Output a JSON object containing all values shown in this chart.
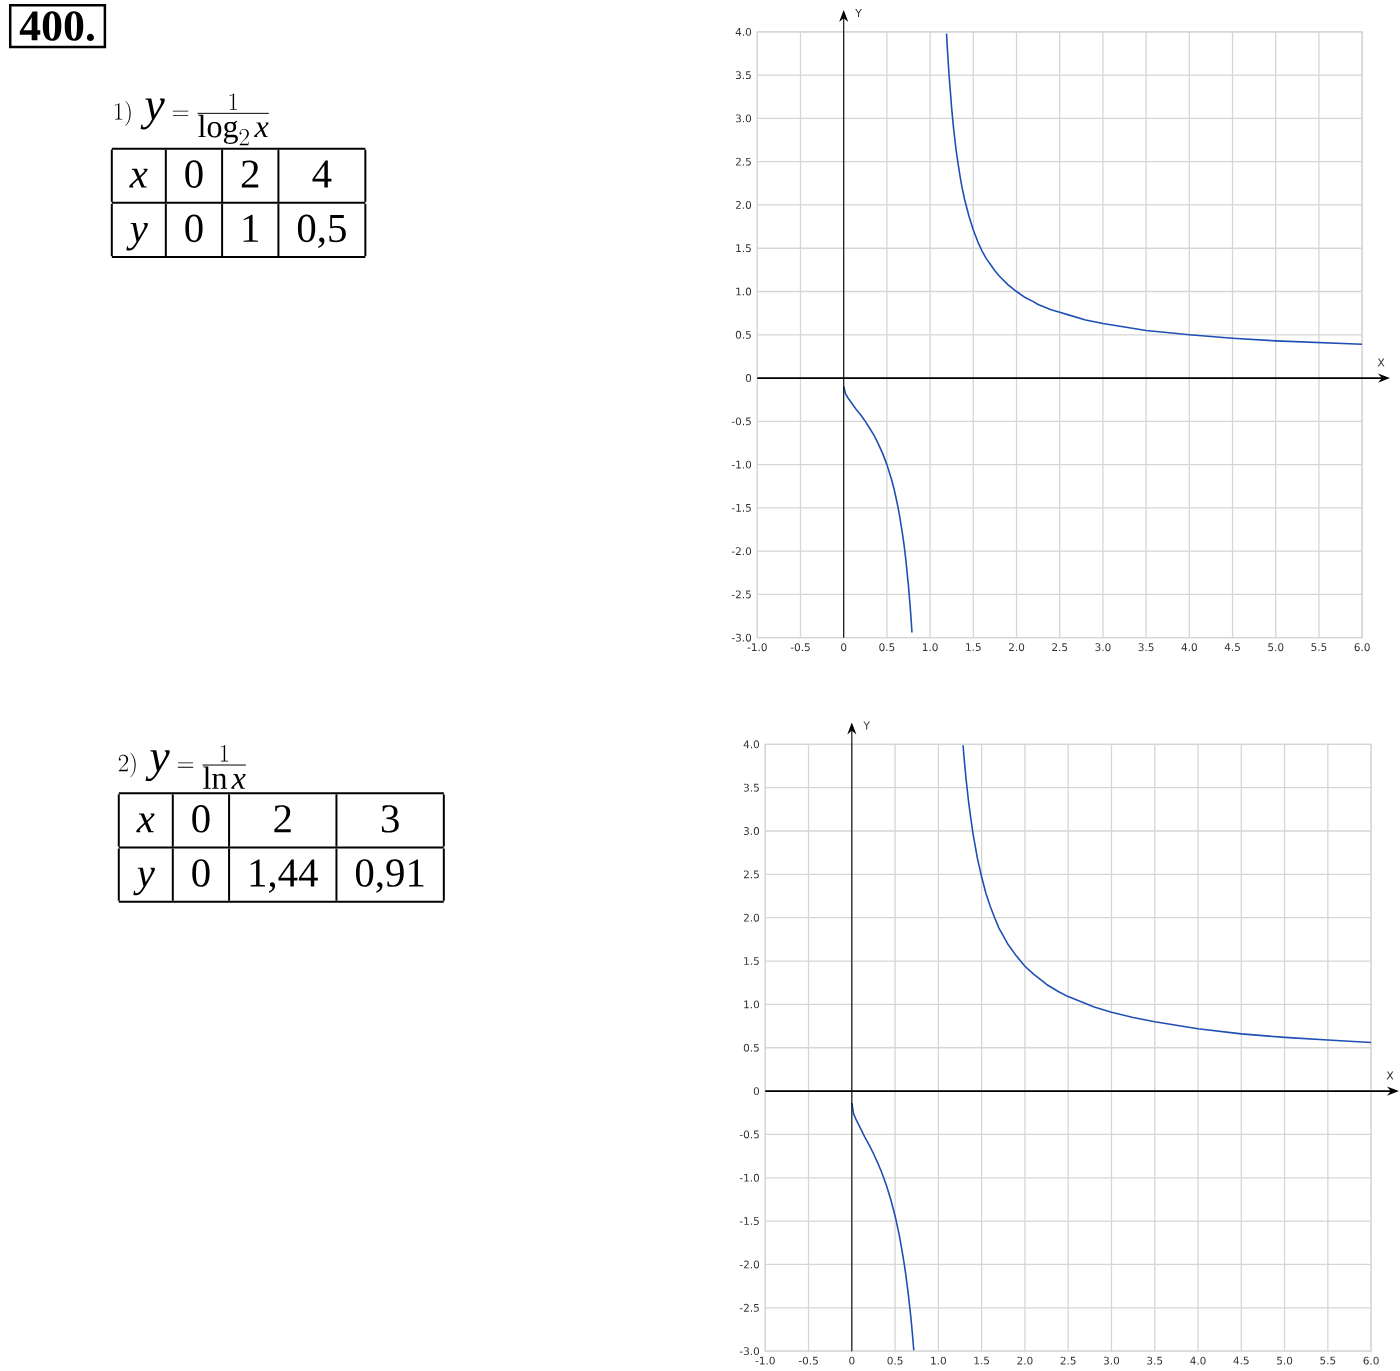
{
  "chart_data": [
    {
      "type": "other",
      "title": "400.",
      "subtitle": "1)\\ y=\\frac{1}{\\log_{2}x}",
      "annotations": [
        "x",
        "0",
        "2",
        "4",
        "y",
        "0",
        "1",
        "0,5"
      ]
    },
    {
      "type": "line",
      "xlabel": "X",
      "ylabel": "Y",
      "xlim": [
        -1,
        6
      ],
      "ylim": [
        -3,
        4
      ],
      "xticks": [
        {
          "value": -1,
          "label": "-1.0"
        },
        -0.5,
        0,
        0.5,
        {
          "value": 1,
          "label": "1.0"
        },
        1.5,
        {
          "value": 2,
          "label": "2.0"
        },
        2.5,
        {
          "value": 3,
          "label": "3.0"
        },
        3.5,
        {
          "value": 4,
          "label": "4.0"
        },
        4.5,
        {
          "value": 5,
          "label": "5.0"
        },
        5.5,
        {
          "value": 6,
          "label": "6.0"
        }
      ],
      "yticks": [
        {
          "value": -3,
          "label": "-3.0"
        },
        -2.5,
        {
          "value": -2,
          "label": "-2.0"
        },
        -1.5,
        {
          "value": -1,
          "label": "-1.0"
        },
        -0.5,
        0,
        0.5,
        {
          "value": 1,
          "label": "1.0"
        },
        1.5,
        {
          "value": 2,
          "label": "2.0"
        },
        2.5,
        {
          "value": 3,
          "label": "3.0"
        },
        3.5,
        {
          "value": 4,
          "label": "4.0"
        }
      ],
      "grid": true,
      "series": [
        {
          "color": "#1f4fb5",
          "x": [
            0.001,
            0.02,
            0.05,
            0.1,
            0.15,
            0.2,
            0.25,
            0.3,
            0.35,
            0.4,
            0.45,
            0.5,
            0.55,
            0.58,
            0.6,
            0.62,
            0.65,
            0.68,
            0.7,
            0.72,
            0.75,
            0.76,
            0.77,
            0.78,
            0.79,
            1,
            1.19,
            1.2,
            1.22,
            1.25,
            1.27,
            1.3,
            1.32,
            1.35,
            1.37,
            1.4,
            1.45,
            1.5,
            1.55,
            1.6,
            1.65,
            1.7,
            1.75,
            1.8,
            1.9,
            2,
            2.1,
            2.2,
            2.25,
            2.4,
            2.5,
            2.6,
            2.8,
            3,
            3.25,
            3.5,
            4,
            4.5,
            5,
            5.5,
            6
          ],
          "values": [
            -0.1,
            -0.18,
            -0.23,
            -0.3,
            -0.37,
            -0.43,
            -0.5,
            -0.58,
            -0.66,
            -0.76,
            -0.87,
            -1.0,
            -1.16,
            -1.27,
            -1.36,
            -1.45,
            -1.61,
            -1.8,
            -1.94,
            -2.11,
            -2.41,
            -2.53,
            -2.65,
            -2.79,
            -2.94,
            null,
            3.98,
            3.8,
            3.49,
            3.11,
            2.9,
            2.64,
            2.5,
            2.31,
            2.2,
            2.06,
            1.87,
            1.71,
            1.58,
            1.47,
            1.38,
            1.31,
            1.24,
            1.18,
            1.08,
            1.0,
            0.93,
            0.88,
            0.85,
            0.79,
            0.76,
            0.73,
            0.67,
            0.63,
            0.59,
            0.55,
            0.5,
            0.46,
            0.43,
            0.41,
            0.39
          ]
        }
      ]
    },
    {
      "type": "other",
      "subtitle": "2)\\ y=\\frac{1}{\\ln x}",
      "annotations": [
        "x",
        "0",
        "2",
        "3",
        "y",
        "0",
        "1,44",
        "0,91"
      ]
    },
    {
      "type": "line",
      "xlabel": "X",
      "ylabel": "Y",
      "xlim": [
        -1,
        6
      ],
      "ylim": [
        -3,
        4
      ],
      "xticks": [
        {
          "value": -1,
          "label": "-1.0"
        },
        -0.5,
        0,
        0.5,
        {
          "value": 1,
          "label": "1.0"
        },
        1.5,
        {
          "value": 2,
          "label": "2.0"
        },
        2.5,
        {
          "value": 3,
          "label": "3.0"
        },
        3.5,
        {
          "value": 4,
          "label": "4.0"
        },
        4.5,
        {
          "value": 5,
          "label": "5.0"
        },
        5.5,
        {
          "value": 6,
          "label": "6.0"
        }
      ],
      "yticks": [
        {
          "value": -3,
          "label": "-3.0"
        },
        -2.5,
        {
          "value": -2,
          "label": "-2.0"
        },
        -1.5,
        {
          "value": -1,
          "label": "-1.0"
        },
        -0.5,
        0,
        0.5,
        {
          "value": 1,
          "label": "1.0"
        },
        1.5,
        {
          "value": 2,
          "label": "2.0"
        },
        2.5,
        {
          "value": 3,
          "label": "3.0"
        },
        3.5,
        {
          "value": 4,
          "label": "4.0"
        }
      ],
      "grid": true,
      "series": [
        {
          "color": "#1f4fb5",
          "x": [
            0.001,
            0.02,
            0.05,
            0.1,
            0.15,
            0.2,
            0.25,
            0.3,
            0.35,
            0.4,
            0.45,
            0.5,
            0.55,
            0.58,
            0.6,
            0.62,
            0.65,
            0.68,
            0.69,
            0.7,
            0.71,
            0.716,
            1,
            1.285,
            1.3,
            1.32,
            1.35,
            1.37,
            1.4,
            1.45,
            1.5,
            1.55,
            1.6,
            1.65,
            1.7,
            1.75,
            1.8,
            1.9,
            2,
            2.1,
            2.2,
            2.25,
            2.4,
            2.5,
            2.6,
            2.8,
            3,
            3.25,
            3.5,
            4,
            4.5,
            5,
            5.5,
            6
          ],
          "values": [
            -0.14,
            -0.26,
            -0.33,
            -0.43,
            -0.53,
            -0.62,
            -0.72,
            -0.83,
            -0.95,
            -1.09,
            -1.25,
            -1.44,
            -1.67,
            -1.84,
            -1.96,
            -2.09,
            -2.32,
            -2.59,
            -2.69,
            -2.8,
            -2.92,
            -2.99,
            null,
            3.99,
            3.81,
            3.6,
            3.33,
            3.18,
            2.97,
            2.69,
            2.47,
            2.28,
            2.13,
            2.0,
            1.88,
            1.79,
            1.7,
            1.56,
            1.44,
            1.35,
            1.27,
            1.23,
            1.14,
            1.09,
            1.05,
            0.97,
            0.91,
            0.85,
            0.8,
            0.72,
            0.66,
            0.62,
            0.59,
            0.56
          ]
        }
      ]
    }
  ]
}
